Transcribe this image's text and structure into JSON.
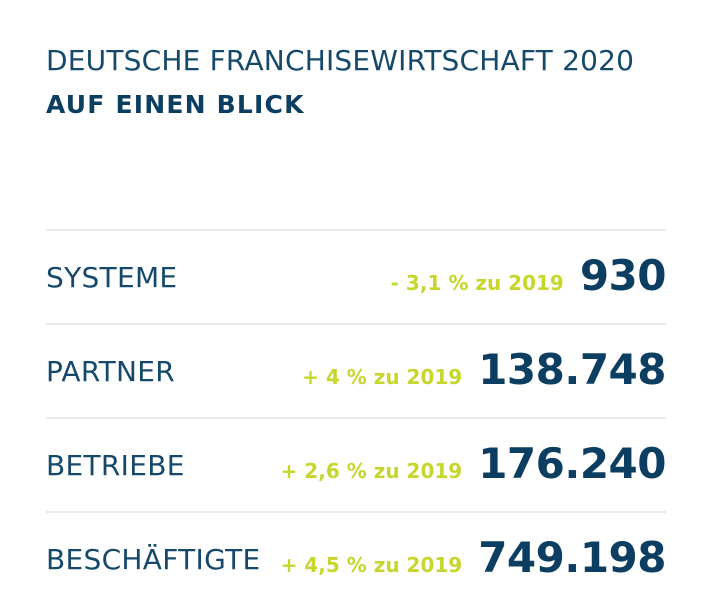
{
  "header": {
    "title": "DEUTSCHE FRANCHISEWIRTSCHAFT 2020",
    "subtitle": "AUF EINEN BLICK"
  },
  "colors": {
    "primary": "#15496b",
    "value": "#0b3e60",
    "accent": "#c7d62c",
    "divider": "#e9ecef"
  },
  "stats": [
    {
      "label": "SYSTEME",
      "change": "- 3,1 % zu 2019",
      "value": "930"
    },
    {
      "label": "PARTNER",
      "change": "+ 4 % zu 2019",
      "value": "138.748"
    },
    {
      "label": "BETRIEBE",
      "change": "+ 2,6 % zu 2019",
      "value": "176.240"
    },
    {
      "label": "BESCHÄFTIGTE",
      "change": "+ 4,5 % zu 2019",
      "value": "749.198"
    }
  ]
}
